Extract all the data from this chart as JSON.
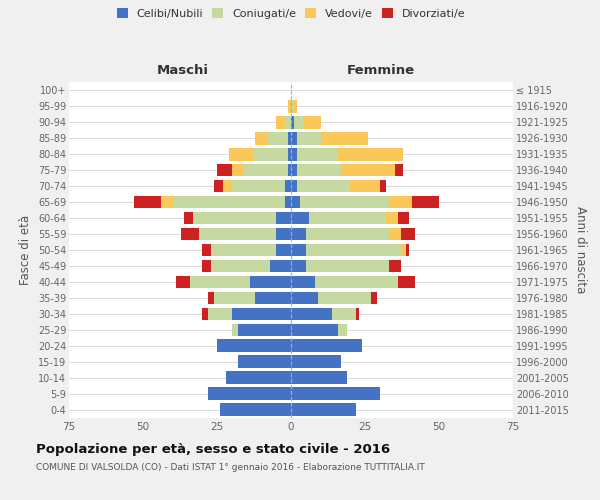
{
  "age_groups": [
    "0-4",
    "5-9",
    "10-14",
    "15-19",
    "20-24",
    "25-29",
    "30-34",
    "35-39",
    "40-44",
    "45-49",
    "50-54",
    "55-59",
    "60-64",
    "65-69",
    "70-74",
    "75-79",
    "80-84",
    "85-89",
    "90-94",
    "95-99",
    "100+"
  ],
  "birth_years": [
    "2011-2015",
    "2006-2010",
    "2001-2005",
    "1996-2000",
    "1991-1995",
    "1986-1990",
    "1981-1985",
    "1976-1980",
    "1971-1975",
    "1966-1970",
    "1961-1965",
    "1956-1960",
    "1951-1955",
    "1946-1950",
    "1941-1945",
    "1936-1940",
    "1931-1935",
    "1926-1930",
    "1921-1925",
    "1916-1920",
    "≤ 1915"
  ],
  "males": {
    "celibi": [
      24,
      28,
      22,
      18,
      25,
      18,
      20,
      12,
      14,
      7,
      5,
      5,
      5,
      2,
      2,
      1,
      1,
      1,
      0,
      0,
      0
    ],
    "coniugati": [
      0,
      0,
      0,
      0,
      0,
      2,
      8,
      14,
      20,
      20,
      22,
      26,
      28,
      38,
      18,
      15,
      12,
      7,
      2,
      0,
      0
    ],
    "vedovi": [
      0,
      0,
      0,
      0,
      0,
      0,
      0,
      0,
      0,
      0,
      0,
      0,
      0,
      4,
      3,
      4,
      8,
      4,
      3,
      1,
      0
    ],
    "divorziati": [
      0,
      0,
      0,
      0,
      0,
      0,
      2,
      2,
      5,
      3,
      3,
      6,
      3,
      9,
      3,
      5,
      0,
      0,
      0,
      0,
      0
    ]
  },
  "females": {
    "nubili": [
      22,
      30,
      19,
      17,
      24,
      16,
      14,
      9,
      8,
      5,
      5,
      5,
      6,
      3,
      2,
      2,
      2,
      2,
      1,
      0,
      0
    ],
    "coniugate": [
      0,
      0,
      0,
      0,
      0,
      3,
      8,
      18,
      28,
      28,
      32,
      28,
      26,
      30,
      18,
      15,
      14,
      8,
      3,
      1,
      0
    ],
    "vedove": [
      0,
      0,
      0,
      0,
      0,
      0,
      0,
      0,
      0,
      0,
      2,
      4,
      4,
      8,
      10,
      18,
      22,
      16,
      6,
      1,
      0
    ],
    "divorziate": [
      0,
      0,
      0,
      0,
      0,
      0,
      1,
      2,
      6,
      4,
      1,
      5,
      4,
      9,
      2,
      3,
      0,
      0,
      0,
      0,
      0
    ]
  },
  "colors": {
    "celibi_nubili": "#4472C4",
    "coniugati": "#C5D9A0",
    "vedovi": "#FAC858",
    "divorziati": "#CC2222"
  },
  "xlim": 75,
  "title": "Popolazione per età, sesso e stato civile - 2016",
  "subtitle": "COMUNE DI VALSOLDA (CO) - Dati ISTAT 1° gennaio 2016 - Elaborazione TUTTITALIA.IT",
  "ylabel_left": "Fasce di età",
  "ylabel_right": "Anni di nascita",
  "xlabel_left": "Maschi",
  "xlabel_right": "Femmine",
  "bg_color": "#f0f0f0",
  "plot_bg": "#ffffff"
}
